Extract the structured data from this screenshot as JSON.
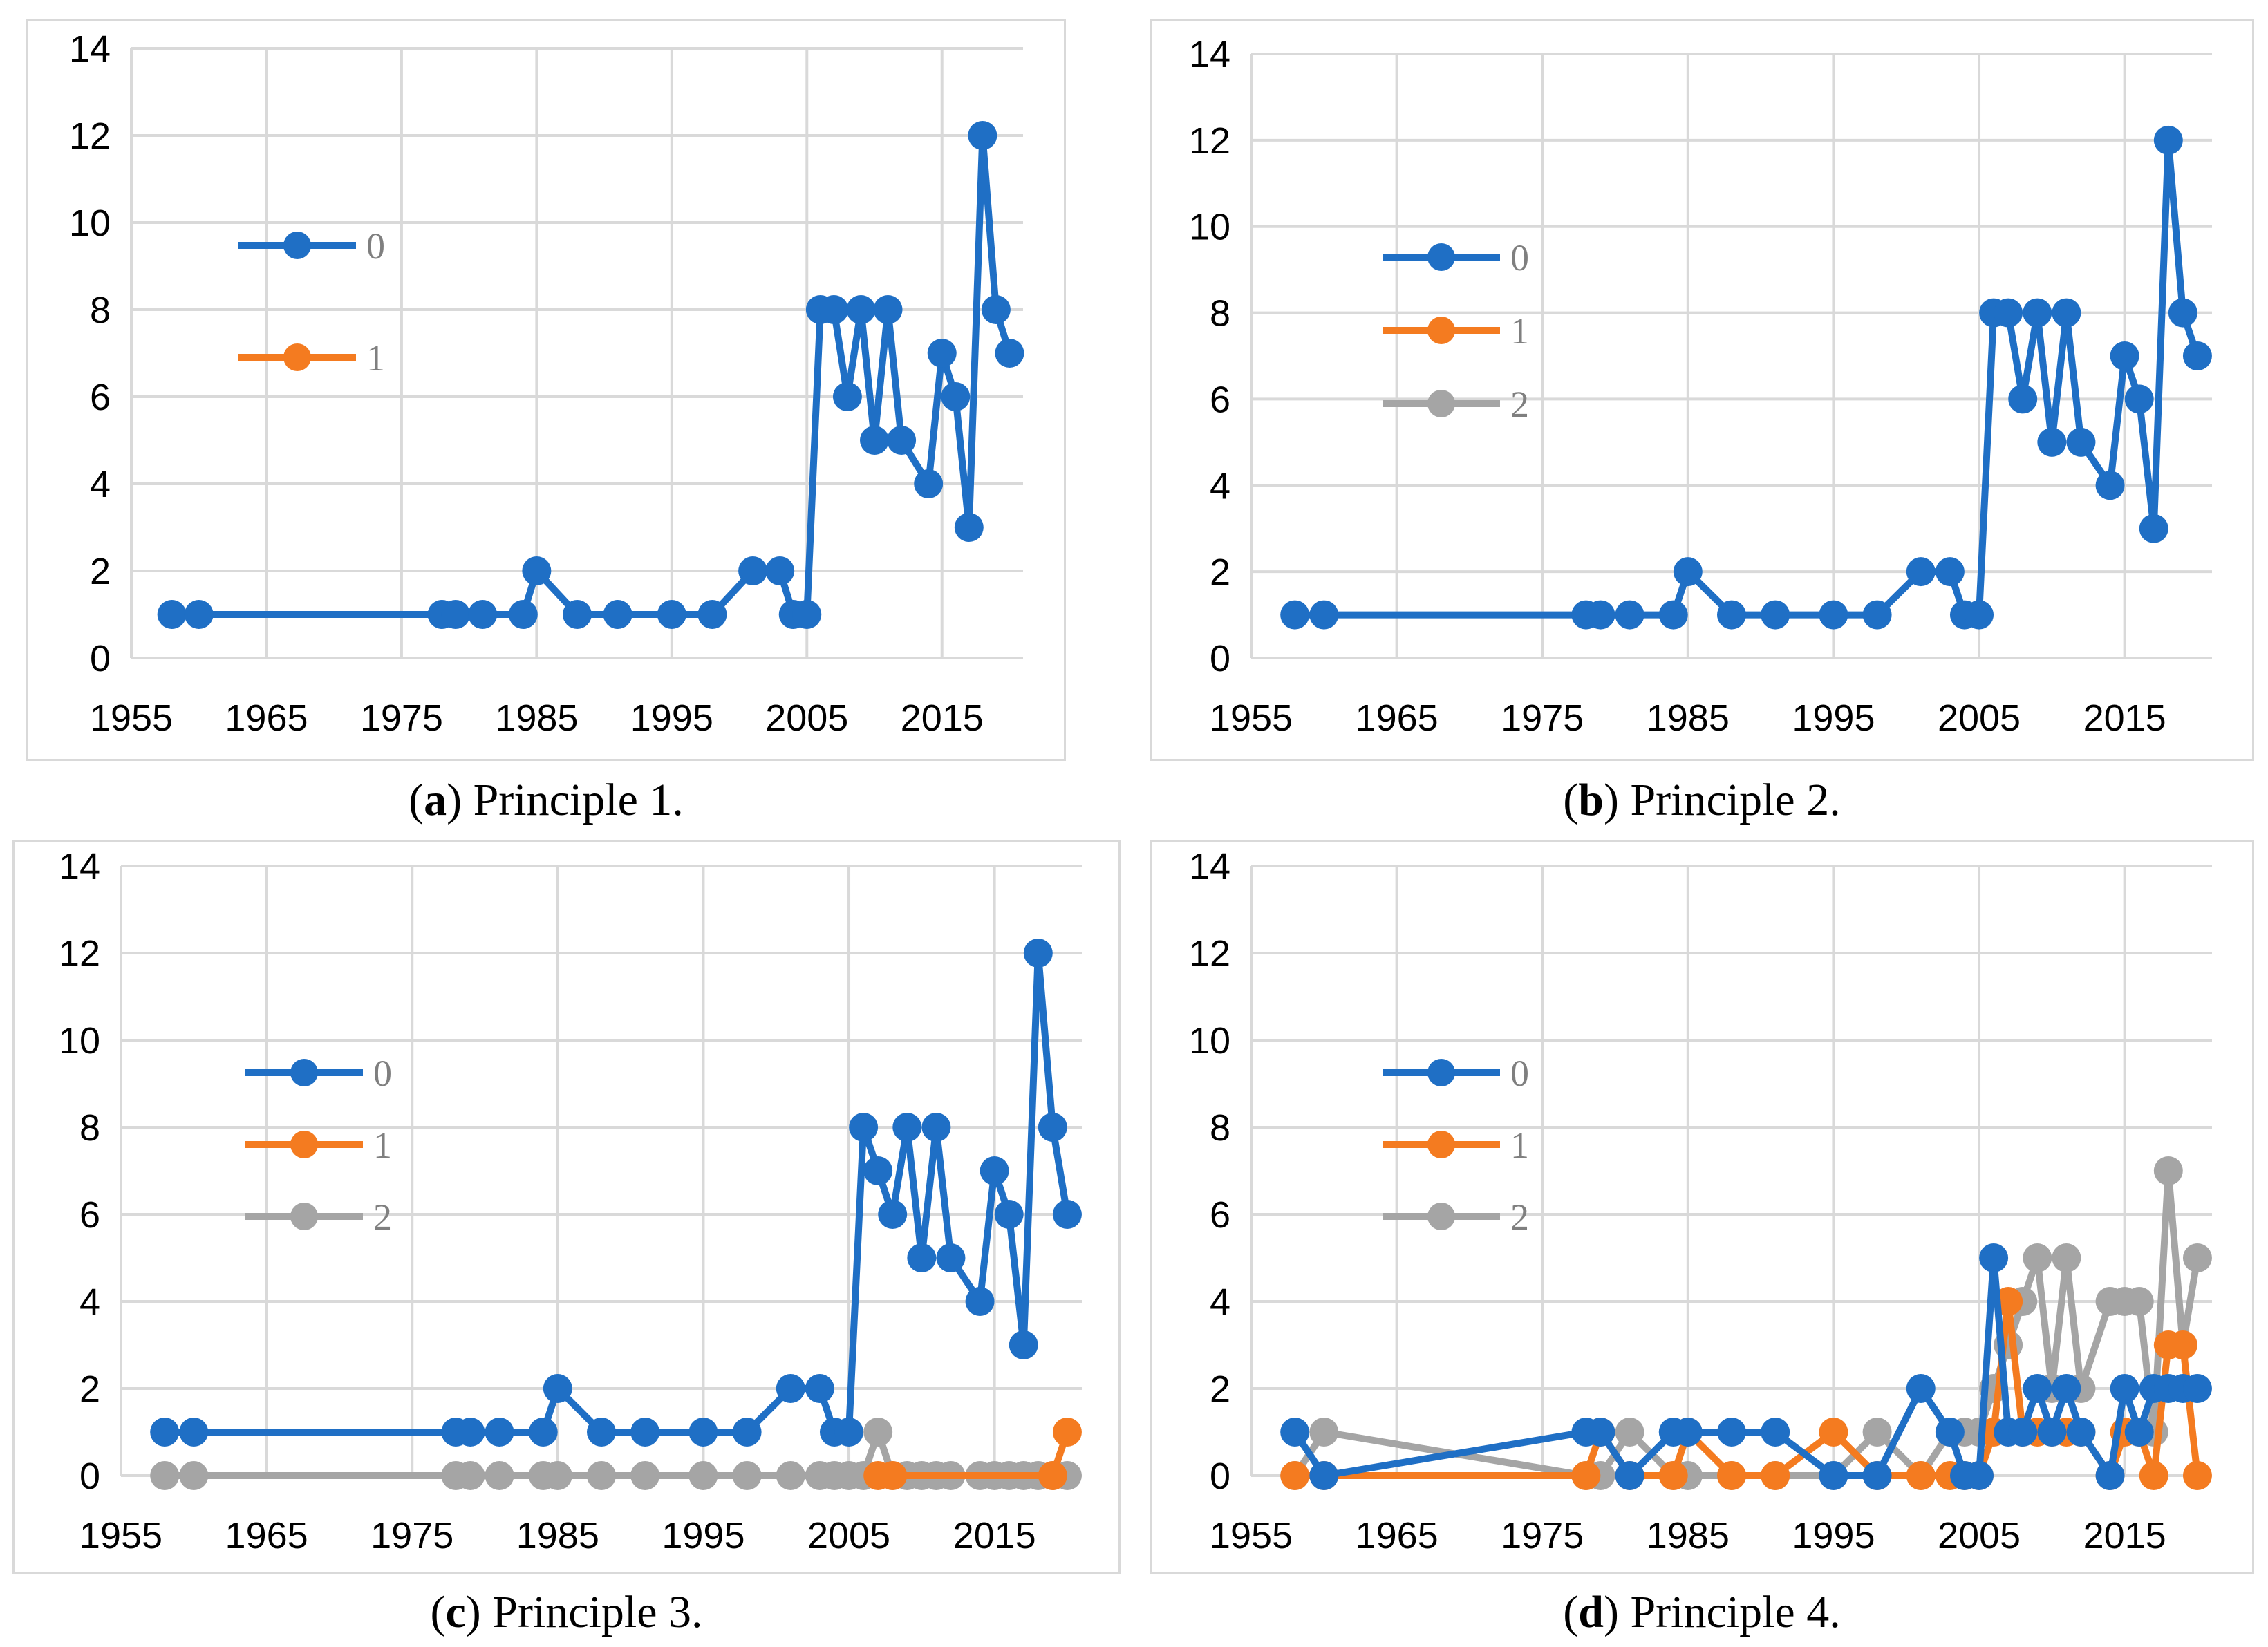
{
  "colors": {
    "s0": "#1f6fc5",
    "s1": "#f47b20",
    "s2": "#a5a5a5",
    "grid": "#d9d9d9"
  },
  "chart_data": [
    {
      "type": "line",
      "panel": "a",
      "caption_letter": "a",
      "caption_text": "Principle 1.",
      "xlim": [
        1955,
        2021
      ],
      "ylim": [
        0,
        14
      ],
      "x_ticks": [
        1955,
        1965,
        1975,
        1985,
        1995,
        2005,
        2015
      ],
      "y_ticks": [
        0,
        2,
        4,
        6,
        8,
        10,
        12,
        14
      ],
      "legend": [
        "0",
        "1"
      ],
      "series": [
        {
          "name": "0",
          "x": [
            1958,
            1960,
            1978,
            1979,
            1981,
            1984,
            1985,
            1988,
            1991,
            1995,
            1998,
            2001,
            2003,
            2004,
            2005,
            2006,
            2007,
            2008,
            2009,
            2010,
            2011,
            2012,
            2014,
            2015,
            2016,
            2017,
            2018,
            2019,
            2020
          ],
          "values": [
            1,
            1,
            1,
            1,
            1,
            1,
            2,
            1,
            1,
            1,
            1,
            2,
            2,
            1,
            1,
            8,
            8,
            6,
            8,
            5,
            8,
            5,
            4,
            7,
            6,
            3,
            12,
            8,
            7
          ]
        },
        {
          "name": "1",
          "x": [],
          "values": []
        }
      ]
    },
    {
      "type": "line",
      "panel": "b",
      "caption_letter": "b",
      "caption_text": "Principle 2.",
      "xlim": [
        1955,
        2021
      ],
      "ylim": [
        0,
        14
      ],
      "x_ticks": [
        1955,
        1965,
        1975,
        1985,
        1995,
        2005,
        2015
      ],
      "y_ticks": [
        0,
        2,
        4,
        6,
        8,
        10,
        12,
        14
      ],
      "legend": [
        "0",
        "1",
        "2"
      ],
      "series": [
        {
          "name": "0",
          "x": [
            1958,
            1960,
            1978,
            1979,
            1981,
            1984,
            1985,
            1988,
            1991,
            1995,
            1998,
            2001,
            2003,
            2004,
            2005,
            2006,
            2007,
            2008,
            2009,
            2010,
            2011,
            2012,
            2014,
            2015,
            2016,
            2017,
            2018,
            2019,
            2020
          ],
          "values": [
            1,
            1,
            1,
            1,
            1,
            1,
            2,
            1,
            1,
            1,
            1,
            2,
            2,
            1,
            1,
            8,
            8,
            6,
            8,
            5,
            8,
            5,
            4,
            7,
            6,
            3,
            12,
            8,
            7
          ]
        },
        {
          "name": "1",
          "x": [],
          "values": []
        },
        {
          "name": "2",
          "x": [],
          "values": []
        }
      ]
    },
    {
      "type": "line",
      "panel": "c",
      "caption_letter": "c",
      "caption_text": "Principle 3.",
      "xlim": [
        1955,
        2021
      ],
      "ylim": [
        0,
        14
      ],
      "x_ticks": [
        1955,
        1965,
        1975,
        1985,
        1995,
        2005,
        2015
      ],
      "y_ticks": [
        0,
        2,
        4,
        6,
        8,
        10,
        12,
        14
      ],
      "legend": [
        "0",
        "1",
        "2"
      ],
      "series": [
        {
          "name": "0",
          "x": [
            1958,
            1960,
            1978,
            1979,
            1981,
            1984,
            1985,
            1988,
            1991,
            1995,
            1998,
            2001,
            2003,
            2004,
            2005,
            2006,
            2007,
            2008,
            2009,
            2010,
            2011,
            2012,
            2014,
            2015,
            2016,
            2017,
            2018,
            2019,
            2020
          ],
          "values": [
            1,
            1,
            1,
            1,
            1,
            1,
            2,
            1,
            1,
            1,
            1,
            2,
            2,
            1,
            1,
            8,
            7,
            6,
            8,
            5,
            8,
            5,
            4,
            7,
            6,
            3,
            12,
            8,
            6
          ]
        },
        {
          "name": "1",
          "x": [
            2007,
            2008,
            2019,
            2020
          ],
          "values": [
            0,
            0,
            0,
            1
          ]
        },
        {
          "name": "2",
          "x": [
            1958,
            1960,
            1978,
            1979,
            1981,
            1984,
            1985,
            1988,
            1991,
            1995,
            1998,
            2001,
            2003,
            2004,
            2005,
            2006,
            2007,
            2008,
            2009,
            2010,
            2011,
            2012,
            2014,
            2015,
            2016,
            2017,
            2018,
            2019,
            2020
          ],
          "values": [
            0,
            0,
            0,
            0,
            0,
            0,
            0,
            0,
            0,
            0,
            0,
            0,
            0,
            0,
            0,
            0,
            1,
            0,
            0,
            0,
            0,
            0,
            0,
            0,
            0,
            0,
            0,
            0,
            0
          ]
        }
      ]
    },
    {
      "type": "line",
      "panel": "d",
      "caption_letter": "d",
      "caption_text": "Principle 4.",
      "xlim": [
        1955,
        2021
      ],
      "ylim": [
        0,
        14
      ],
      "x_ticks": [
        1955,
        1965,
        1975,
        1985,
        1995,
        2005,
        2015
      ],
      "y_ticks": [
        0,
        2,
        4,
        6,
        8,
        10,
        12,
        14
      ],
      "legend": [
        "0",
        "1",
        "2"
      ],
      "series": [
        {
          "name": "0",
          "x": [
            1958,
            1960,
            1978,
            1979,
            1981,
            1984,
            1985,
            1988,
            1991,
            1995,
            1998,
            2001,
            2003,
            2004,
            2005,
            2006,
            2007,
            2008,
            2009,
            2010,
            2011,
            2012,
            2014,
            2015,
            2016,
            2017,
            2018,
            2019,
            2020
          ],
          "values": [
            1,
            0,
            1,
            1,
            0,
            1,
            1,
            1,
            1,
            0,
            0,
            2,
            1,
            0,
            0,
            5,
            1,
            1,
            2,
            1,
            2,
            1,
            0,
            2,
            1,
            2,
            2,
            2,
            2
          ]
        },
        {
          "name": "1",
          "x": [
            1958,
            1960,
            1978,
            1979,
            1981,
            1984,
            1985,
            1988,
            1991,
            1995,
            1998,
            2001,
            2003,
            2004,
            2005,
            2006,
            2007,
            2008,
            2009,
            2010,
            2011,
            2012,
            2014,
            2015,
            2016,
            2017,
            2018,
            2019,
            2020
          ],
          "values": [
            0,
            0,
            0,
            1,
            0,
            0,
            1,
            0,
            0,
            1,
            0,
            0,
            0,
            0,
            0,
            1,
            4,
            1,
            1,
            1,
            1,
            1,
            0,
            1,
            1,
            0,
            3,
            3,
            0
          ]
        },
        {
          "name": "2",
          "x": [
            1958,
            1960,
            1978,
            1979,
            1981,
            1984,
            1985,
            1988,
            1991,
            1995,
            1998,
            2001,
            2003,
            2004,
            2005,
            2006,
            2007,
            2008,
            2009,
            2010,
            2011,
            2012,
            2014,
            2015,
            2016,
            2017,
            2018,
            2019,
            2020
          ],
          "values": [
            0,
            1,
            0,
            0,
            1,
            0,
            0,
            0,
            0,
            0,
            1,
            0,
            1,
            1,
            1,
            2,
            3,
            4,
            5,
            2,
            5,
            2,
            4,
            4,
            4,
            1,
            7,
            3,
            5
          ]
        }
      ]
    }
  ]
}
